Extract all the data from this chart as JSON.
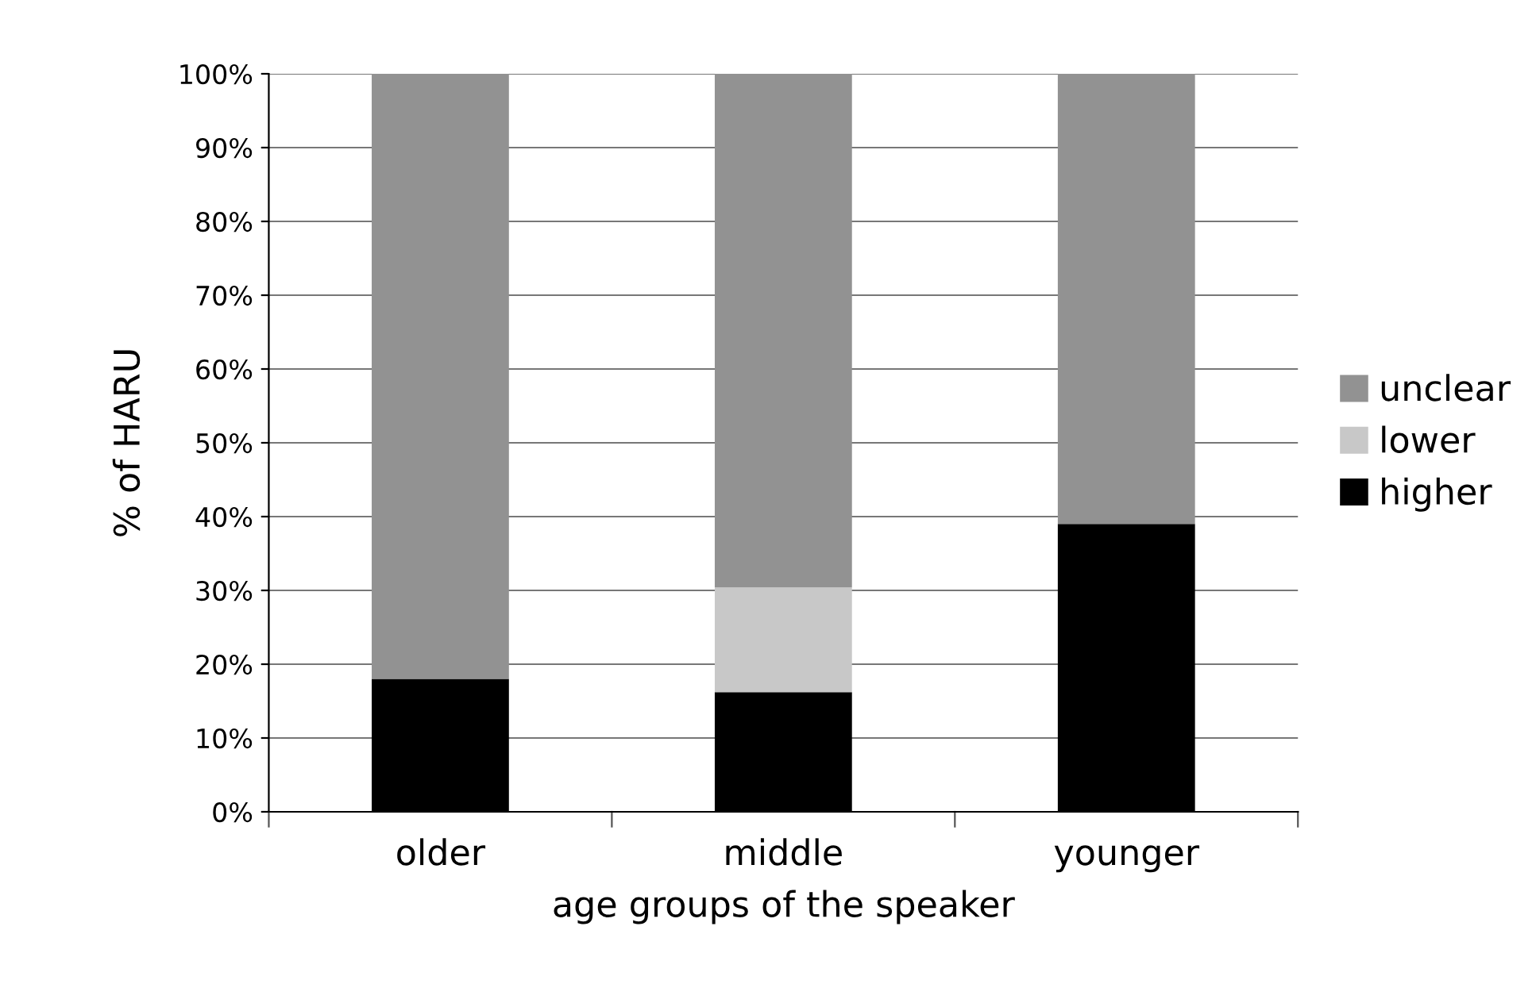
{
  "chart_data": {
    "type": "bar",
    "stacked": true,
    "categories": [
      "older",
      "middle",
      "younger"
    ],
    "series": [
      {
        "name": "higher",
        "color": "#000000",
        "values": [
          18,
          16.2,
          39
        ]
      },
      {
        "name": "lower",
        "color": "#c8c8c8",
        "values": [
          0,
          14.2,
          0
        ]
      },
      {
        "name": "unclear",
        "color": "#929292",
        "values": [
          82,
          69.6,
          61
        ]
      }
    ],
    "xlabel": "age groups of the speaker",
    "ylabel": "% of HARU",
    "ylim": [
      0,
      100
    ],
    "yticks": [
      {
        "value": 0,
        "label": "0%"
      },
      {
        "value": 10,
        "label": "10%"
      },
      {
        "value": 20,
        "label": "20%"
      },
      {
        "value": 30,
        "label": "30%"
      },
      {
        "value": 40,
        "label": "40%"
      },
      {
        "value": 50,
        "label": "50%"
      },
      {
        "value": 60,
        "label": "60%"
      },
      {
        "value": 70,
        "label": "70%"
      },
      {
        "value": 80,
        "label": "80%"
      },
      {
        "value": 90,
        "label": "90%"
      },
      {
        "value": 100,
        "label": "100%"
      }
    ],
    "grid": "y",
    "legend": "right"
  }
}
